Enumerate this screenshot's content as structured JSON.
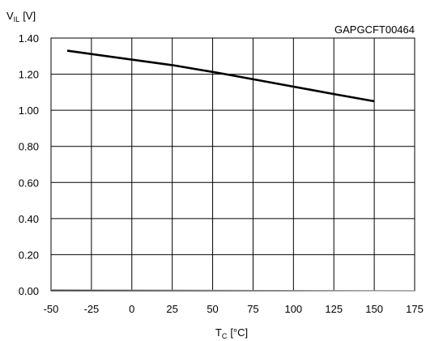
{
  "chart_data": {
    "type": "line",
    "chart_code": "GAPGCFT00464",
    "ylabel": {
      "symbol": "V",
      "subscript": "IL",
      "unit": "[V]"
    },
    "xlabel": {
      "symbol": "T",
      "subscript": "C",
      "unit": "[°C]"
    },
    "xlim": [
      -50,
      175
    ],
    "ylim": [
      0.0,
      1.4
    ],
    "x_ticks": [
      -50,
      -25,
      0,
      25,
      50,
      75,
      100,
      125,
      150,
      175
    ],
    "x_tick_labels": [
      "-50",
      "-25",
      "0",
      "25",
      "50",
      "75",
      "100",
      "125",
      "150",
      "175"
    ],
    "y_ticks": [
      0.0,
      0.2,
      0.4,
      0.6,
      0.8,
      1.0,
      1.2,
      1.4
    ],
    "y_tick_labels": [
      "0.00",
      "0.20",
      "0.40",
      "0.60",
      "0.80",
      "1.00",
      "1.20",
      "1.40"
    ],
    "grid": true,
    "series": [
      {
        "color": "#000000",
        "x": [
          -40,
          25,
          55,
          125,
          150
        ],
        "y": [
          1.33,
          1.25,
          1.205,
          1.09,
          1.05
        ]
      },
      {
        "color": "#808080",
        "x": [
          -50,
          175
        ],
        "y": [
          0.005,
          0.0
        ]
      }
    ]
  }
}
